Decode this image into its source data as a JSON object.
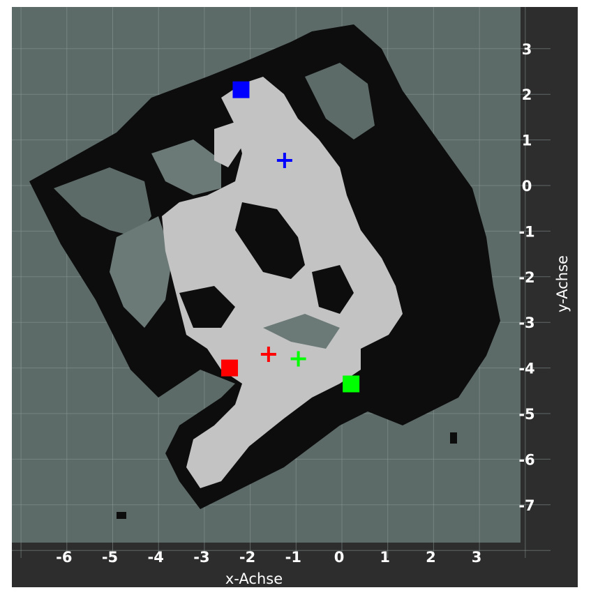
{
  "view": {
    "background": "#2d2d2d",
    "map_background": "#5d6b68",
    "grid_color": "#8a9896"
  },
  "map": {
    "cell_colors": {
      "free": "#c3c3c3",
      "occupied": "#0d0d0d",
      "unknown": "#5d6b68",
      "partial": "#6b7a77"
    }
  },
  "axes": {
    "x_label": "x-Achse",
    "y_label": "y-Achse",
    "x_ticks": [
      "-6",
      "-5",
      "-4",
      "-3",
      "-2",
      "-1",
      "0",
      "1",
      "2",
      "3"
    ],
    "y_ticks": [
      "3",
      "2",
      "1",
      "0",
      "-1",
      "-2",
      "-3",
      "-4",
      "-5",
      "-6",
      "-7"
    ],
    "x_range": [
      -7,
      4
    ],
    "y_range": [
      -8,
      4
    ]
  },
  "markers": [
    {
      "shape": "square",
      "color": "#0000ff",
      "x": -2.2,
      "y": 2.1
    },
    {
      "shape": "cross",
      "color": "#0000ff",
      "x": -1.25,
      "y": 0.55
    },
    {
      "shape": "square",
      "color": "#ff0000",
      "x": -2.45,
      "y": -4.0
    },
    {
      "shape": "cross",
      "color": "#ff0000",
      "x": -1.6,
      "y": -3.7
    },
    {
      "shape": "cross",
      "color": "#00ff00",
      "x": -0.95,
      "y": -3.8
    },
    {
      "shape": "square",
      "color": "#00ff00",
      "x": 0.2,
      "y": -4.35
    }
  ]
}
